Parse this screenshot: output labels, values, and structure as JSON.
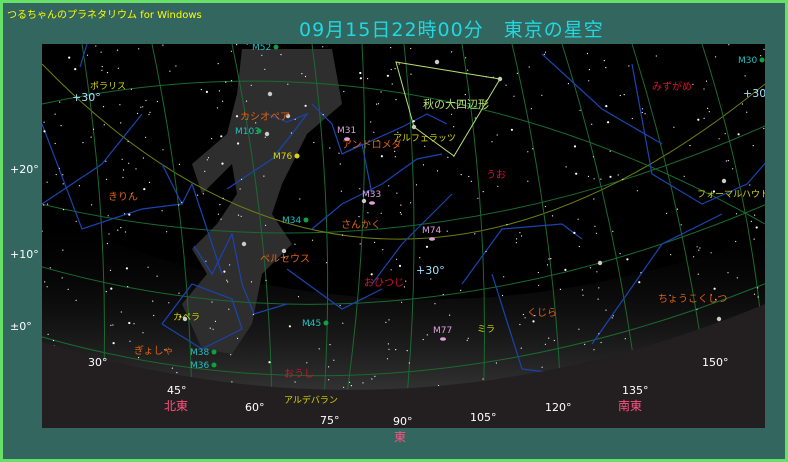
{
  "app_title": "つるちゃんのプラネタリウム for Windows",
  "main_title": "09月15日22時00分　東京の星空",
  "declination_labels": [
    "+20°",
    "+10°",
    "±0°"
  ],
  "azimuth_labels": [
    "30°",
    "45°",
    "60°",
    "75°",
    "90°",
    "105°",
    "120°",
    "135°",
    "150°"
  ],
  "direction_labels": {
    "northeast": "北東",
    "east": "東",
    "southeast": "南東"
  },
  "grid_labels": [
    "+30°",
    "+30",
    "+30°"
  ],
  "constellations": [
    "カシオペア",
    "アンドロメダ",
    "みずがめ",
    "うお",
    "きりん",
    "さんかく",
    "ペルセウス",
    "おひつじ",
    "ぎょしゃ",
    "おうし",
    "くじら",
    "ちょうこくしつ"
  ],
  "stars": [
    "ポラリス",
    "アルフェラッツ",
    "フォーマルハウト",
    "カペラ",
    "アルデバラン",
    "ミラ"
  ],
  "asterisms": [
    "秋の大四辺形"
  ],
  "messier": [
    "M52",
    "M103",
    "M76",
    "M31",
    "M30",
    "M33",
    "M74",
    "M34",
    "M45",
    "M38",
    "M36",
    "M77"
  ],
  "colors": {
    "constellation_name": "#e06010",
    "zodiac_name": "#d81030",
    "star_name": "#d8d800",
    "messier_cluster": "#20c0c0",
    "messier_galaxy": "#e0a0e0",
    "constellation_line": "#1a44b0",
    "grid_line": "#1a6a30",
    "ecliptic_line": "#6a8010",
    "asterism_line": "#b8e070",
    "sky": "#000000",
    "ground": "#231f20",
    "title": "#22d8e0"
  }
}
